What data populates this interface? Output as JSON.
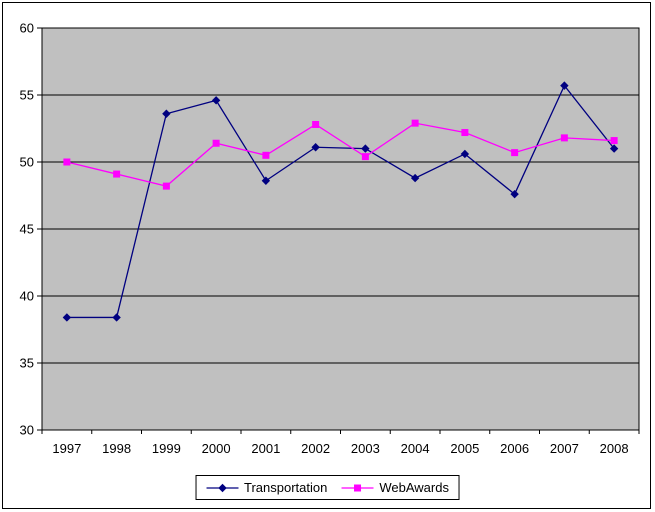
{
  "chart_data": {
    "type": "line",
    "title": "",
    "xlabel": "",
    "ylabel": "",
    "categories": [
      "1997",
      "1998",
      "1999",
      "2000",
      "2001",
      "2002",
      "2003",
      "2004",
      "2005",
      "2006",
      "2007",
      "2008"
    ],
    "series": [
      {
        "name": "Transportation",
        "color": "#000080",
        "marker": "diamond",
        "values": [
          38.4,
          38.4,
          53.6,
          54.6,
          48.6,
          51.1,
          51.0,
          48.8,
          50.6,
          47.6,
          55.7,
          51.0
        ]
      },
      {
        "name": "WebAwards",
        "color": "#FF00FF",
        "marker": "square",
        "values": [
          50.0,
          49.1,
          48.2,
          51.4,
          50.5,
          52.8,
          50.4,
          52.9,
          52.2,
          50.7,
          51.8,
          51.6
        ]
      }
    ],
    "ylim": [
      30,
      60
    ],
    "y_ticks": [
      30,
      35,
      40,
      45,
      50,
      55,
      60
    ],
    "y_tick_labels": [
      "30",
      "35",
      "40",
      "45",
      "50",
      "55",
      "60"
    ],
    "grid": true,
    "legend_position": "bottom-center",
    "plot_background": "#C0C0C0",
    "gridline_color": "#000000",
    "axis_color": "#000000",
    "text_color": "#000000",
    "frame_border_color": "#000000"
  }
}
